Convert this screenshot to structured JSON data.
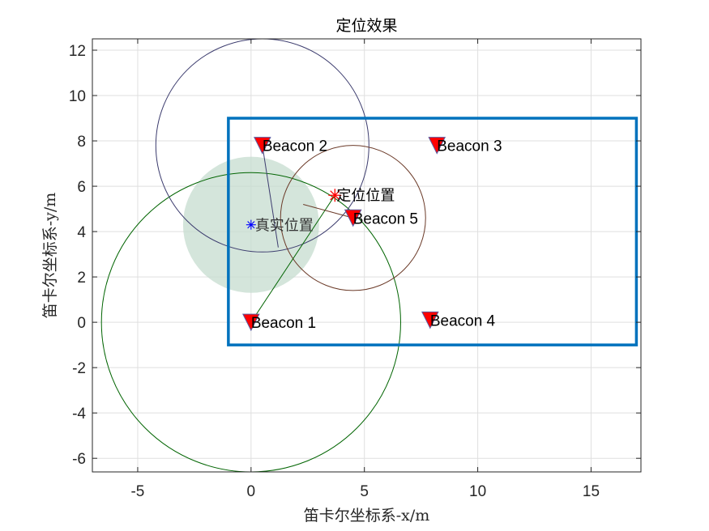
{
  "chart_data": {
    "type": "scatter",
    "title": "定位效果",
    "xlabel": "笛卡尔坐标系-x/m",
    "ylabel": "笛卡尔坐标系-y/m",
    "xlim": [
      -7,
      17.2
    ],
    "ylim": [
      -6.6,
      12.5
    ],
    "xticks": [
      -5,
      0,
      5,
      10,
      15
    ],
    "xtick_labels": [
      "-5",
      "0",
      "5",
      "10",
      "15"
    ],
    "yticks": [
      -6,
      -4,
      -2,
      0,
      2,
      4,
      6,
      8,
      10,
      12
    ],
    "ytick_labels": [
      "-6",
      "-4",
      "-2",
      "0",
      "2",
      "4",
      "6",
      "8",
      "10",
      "12"
    ],
    "grid": true,
    "beacons": [
      {
        "label": "Beacon 1",
        "x": 0,
        "y": 0,
        "radius": 6.6,
        "color": "#006400"
      },
      {
        "label": "Beacon 2",
        "x": 0.5,
        "y": 7.8,
        "radius": 4.7,
        "color": "#3c3c6e"
      },
      {
        "label": "Beacon 3",
        "x": 8.2,
        "y": 7.8,
        "radius": null,
        "color": null
      },
      {
        "label": "Beacon 4",
        "x": 7.9,
        "y": 0.1,
        "radius": null,
        "color": null
      },
      {
        "label": "Beacon 5",
        "x": 4.5,
        "y": 4.6,
        "radius": 3.2,
        "color": "#6b3a28"
      }
    ],
    "beacon_marker_color": "#ff0000",
    "region_rectangle": {
      "x_min": -1,
      "x_max": 17,
      "y_min": -1,
      "y_max": 9,
      "color": "#0072bd"
    },
    "true_position": {
      "label": "真实位置",
      "x": 0,
      "y": 4.3,
      "uncertainty_radius": 3,
      "color": "#0000ff",
      "fill_color": "#c6dccf"
    },
    "estimated_position": {
      "label": "定位位置",
      "x": 3.7,
      "y": 5.6,
      "color": "#ff0000"
    },
    "range_lines": [
      {
        "from": 1,
        "to": [
          3.7,
          5.6
        ],
        "color": "#006400"
      },
      {
        "from": 2,
        "to": [
          1.2,
          3.3
        ],
        "color": "#3c3c6e"
      },
      {
        "from": 5,
        "to": [
          2.3,
          5.2
        ],
        "color": "#6b3a28"
      }
    ]
  }
}
